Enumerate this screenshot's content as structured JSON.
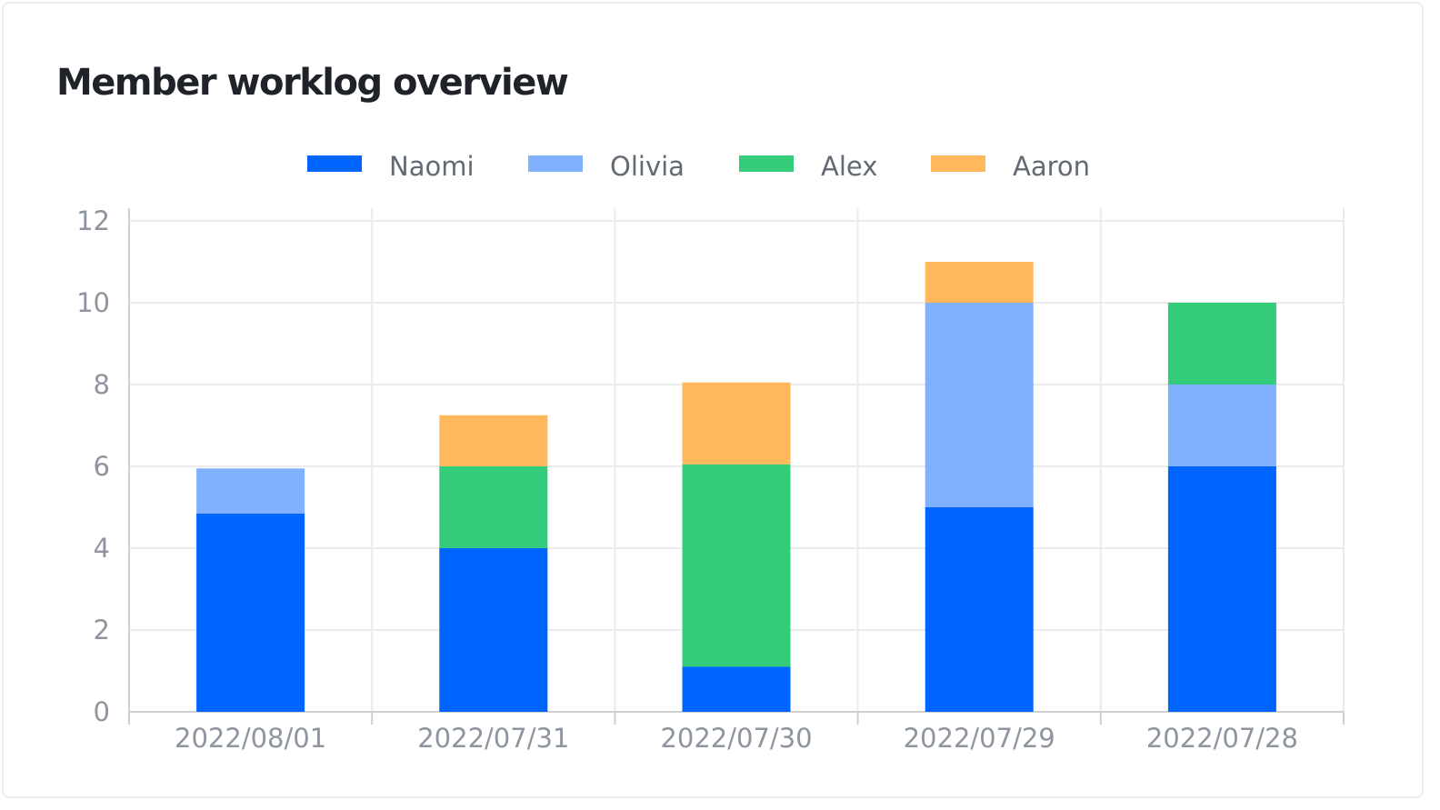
{
  "title": "Member worklog overview",
  "colors": {
    "Naomi": "#0064ff",
    "Olivia": "#80b1ff",
    "Alex": "#33cc7b",
    "Aaron": "#ffb85c"
  },
  "chart_data": {
    "type": "bar",
    "stacked": true,
    "title": "Member worklog overview",
    "xlabel": "",
    "ylabel": "",
    "categories": [
      "2022/08/01",
      "2022/07/31",
      "2022/07/30",
      "2022/07/29",
      "2022/07/28"
    ],
    "series": [
      {
        "name": "Naomi",
        "values": [
          4.85,
          4,
          1.1,
          5,
          6
        ]
      },
      {
        "name": "Olivia",
        "values": [
          1.1,
          0,
          0,
          5,
          2
        ]
      },
      {
        "name": "Alex",
        "values": [
          0,
          2,
          4.95,
          0,
          2
        ]
      },
      {
        "name": "Aaron",
        "values": [
          0,
          1.25,
          2,
          1,
          0
        ]
      }
    ],
    "ylim": [
      0,
      12
    ],
    "yticks": [
      0,
      2,
      4,
      6,
      8,
      10,
      12
    ],
    "legend": "top",
    "grid": true
  }
}
